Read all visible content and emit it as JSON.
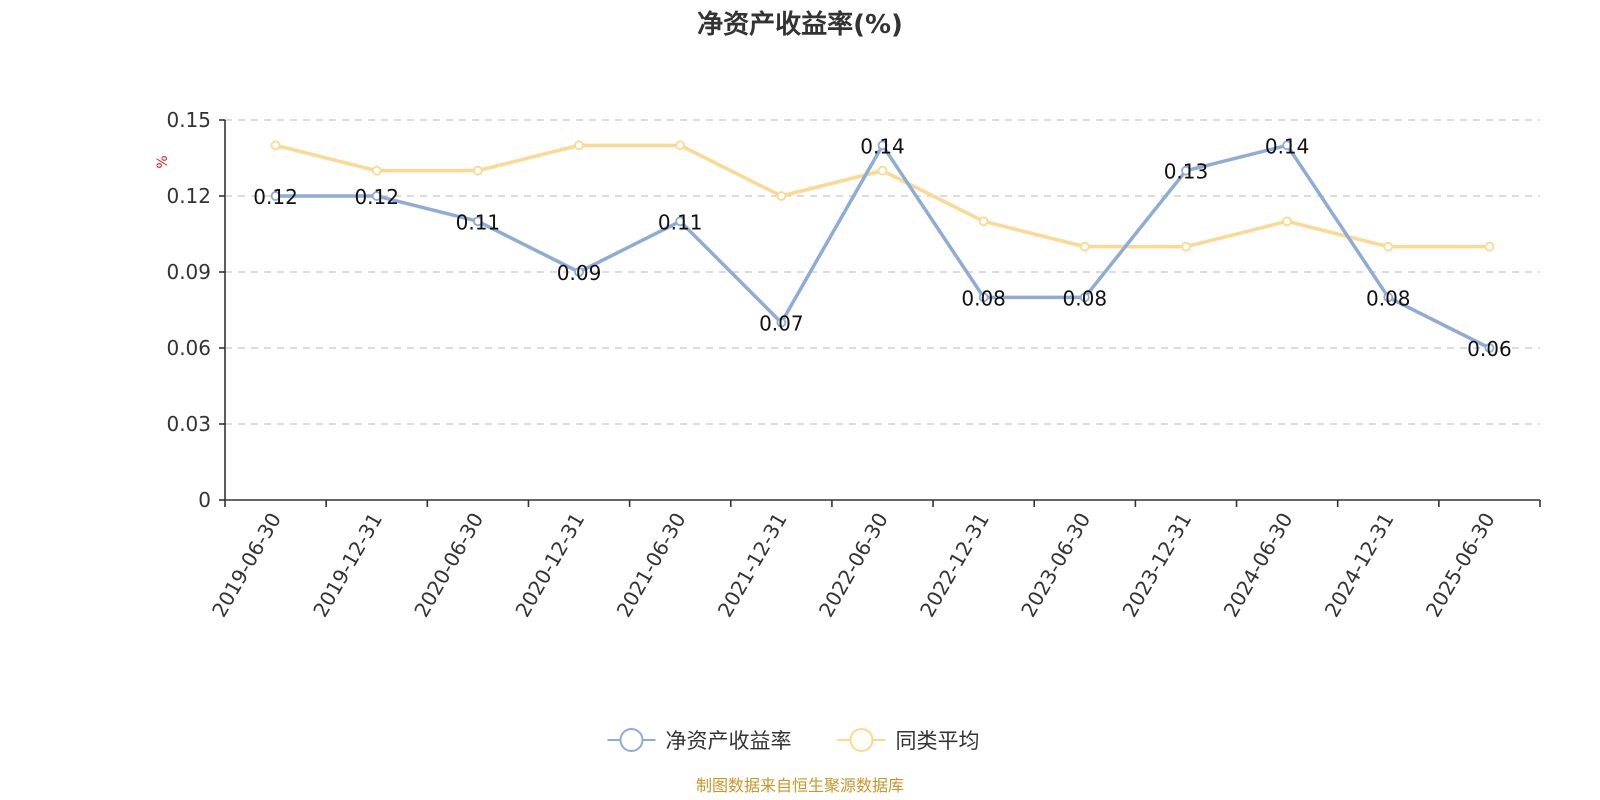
{
  "chart_data": {
    "type": "line",
    "title": "净资产收益率(%)",
    "y_unit": "%",
    "categories": [
      "2019-06-30",
      "2019-12-31",
      "2020-06-30",
      "2020-12-31",
      "2021-06-30",
      "2021-12-31",
      "2022-06-30",
      "2022-12-31",
      "2023-06-30",
      "2023-12-31",
      "2024-06-30",
      "2024-12-31",
      "2025-06-30"
    ],
    "series": [
      {
        "name": "净资产收益率",
        "color": "#8eacd6",
        "show_labels": true,
        "values": [
          0.12,
          0.12,
          0.11,
          0.09,
          0.11,
          0.07,
          0.14,
          0.08,
          0.08,
          0.13,
          0.14,
          0.08,
          0.06
        ]
      },
      {
        "name": "同类平均",
        "color": "#fbd990",
        "show_labels": false,
        "values": [
          0.14,
          0.13,
          0.13,
          0.14,
          0.14,
          0.12,
          0.13,
          0.11,
          0.1,
          0.1,
          0.11,
          0.1,
          0.1
        ]
      }
    ],
    "ylim": [
      0,
      0.15
    ],
    "yticks": [
      "0",
      "0.03",
      "0.06",
      "0.09",
      "0.12",
      "0.15"
    ],
    "grid": true,
    "legend_position": "bottom-center"
  },
  "footer": {
    "source": "制图数据来自恒生聚源数据库"
  }
}
